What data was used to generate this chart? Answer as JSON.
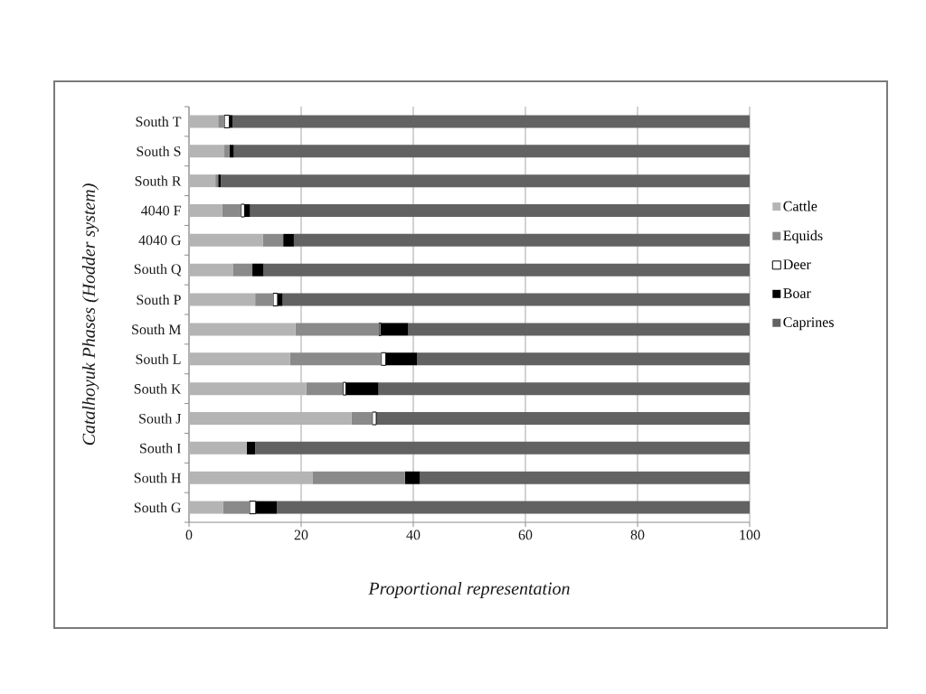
{
  "chart_data": {
    "type": "bar",
    "orientation": "horizontal",
    "stacked": true,
    "xlabel": "Proportional representation",
    "ylabel": "Catalhoyuk Phases (Hodder system)",
    "categories": [
      "South T",
      "South S",
      "South R",
      "4040 F",
      "4040 G",
      "South Q",
      "South P",
      "South M",
      "South L",
      "South K",
      "South J",
      "South I",
      "South H",
      "South G"
    ],
    "series": [
      {
        "name": "Cattle",
        "color": "#b4b4b4",
        "values": [
          5.2,
          6.3,
          4.7,
          5.9,
          13.2,
          7.8,
          11.8,
          19.0,
          18.0,
          20.9,
          29.0,
          10.3,
          22.0,
          6.1
        ]
      },
      {
        "name": "Equids",
        "color": "#8a8a8a",
        "values": [
          1.1,
          0.9,
          0.5,
          3.4,
          3.6,
          3.5,
          3.2,
          14.9,
          16.3,
          6.6,
          3.7,
          0,
          16.5,
          4.7
        ]
      },
      {
        "name": "Deer",
        "color": "#ffffff",
        "values": [
          0.9,
          0,
          0,
          0.6,
          0,
          0,
          0.8,
          0.3,
          0.8,
          0.5,
          0.7,
          0,
          0,
          1.1
        ]
      },
      {
        "name": "Boar",
        "color": "#000000",
        "values": [
          0.6,
          0.8,
          0.5,
          1.0,
          1.9,
          2.0,
          0.9,
          4.9,
          5.6,
          5.8,
          0,
          1.5,
          2.7,
          3.8
        ]
      },
      {
        "name": "Caprines",
        "color": "#626262",
        "values": [
          92.2,
          92.0,
          94.3,
          89.1,
          81.3,
          86.7,
          83.3,
          60.9,
          59.3,
          66.2,
          66.6,
          88.2,
          58.8,
          84.3
        ]
      }
    ],
    "xlim": [
      0,
      100
    ],
    "xticks": [
      0,
      20,
      40,
      60,
      80,
      100
    ],
    "grid": "x",
    "legend": "right"
  }
}
